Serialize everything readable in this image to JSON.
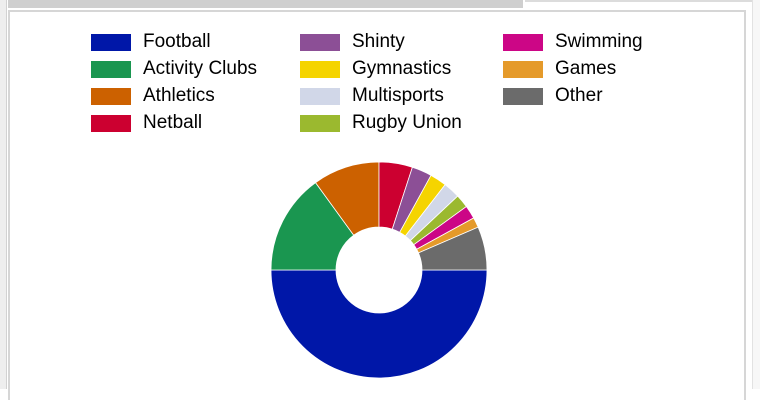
{
  "chart_data": {
    "type": "pie",
    "variant": "donut",
    "title": "",
    "categories": [
      "Football",
      "Activity Clubs",
      "Athletics",
      "Netball",
      "Shinty",
      "Gymnastics",
      "Multisports",
      "Rugby Union",
      "Swimming",
      "Games",
      "Other"
    ],
    "values": [
      50,
      15,
      10,
      5,
      3,
      2.5,
      2.5,
      2,
      2,
      1.5,
      6.5
    ],
    "colors": [
      "#0017a8",
      "#1a9650",
      "#cc6100",
      "#cc0030",
      "#8c4f96",
      "#f5d400",
      "#d1d7e8",
      "#9bb92f",
      "#cc0686",
      "#e59a2a",
      "#6b6b6b"
    ],
    "legend_position": "top",
    "legend_columns": [
      [
        "Football",
        "Activity Clubs",
        "Athletics",
        "Netball"
      ],
      [
        "Shinty",
        "Gymnastics",
        "Multisports",
        "Rugby Union"
      ],
      [
        "Swimming",
        "Games",
        "Other"
      ]
    ],
    "slice_order": "clockwise from 3 o'clock: Football, Activity Clubs, Athletics, Netball, Shinty, Gymnastics, Multisports, Rugby Union, Swimming, Games, Other"
  }
}
